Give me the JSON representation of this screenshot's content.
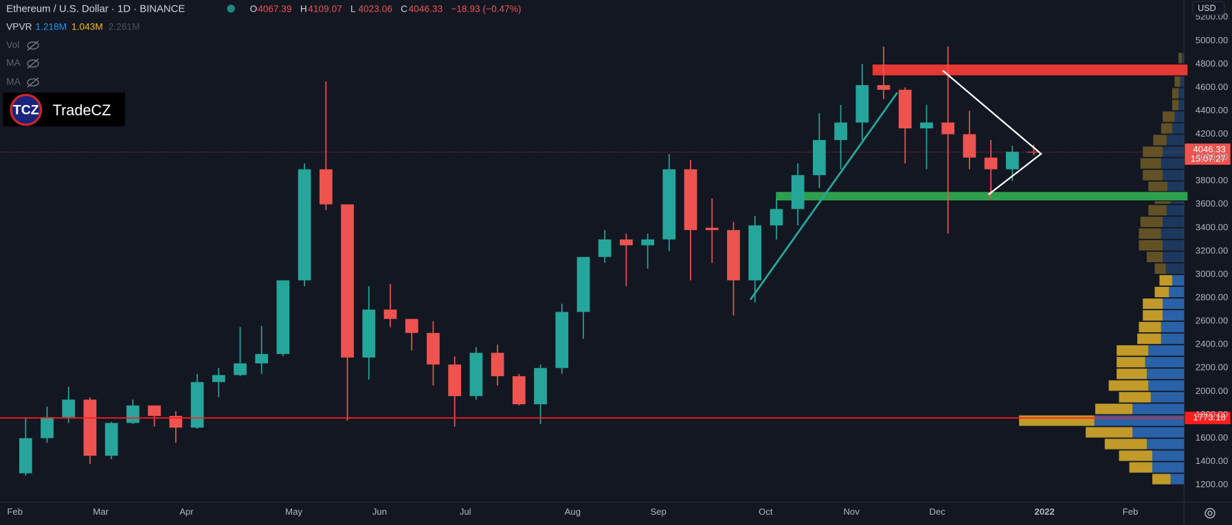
{
  "chart_data": {
    "type": "candlestick",
    "symbol": "Ethereum / U.S. Dollar · 1D · BINANCE",
    "ohlc": [
      {
        "label": "O",
        "value": 4067.39
      },
      {
        "label": "H",
        "value": 4109.07
      },
      {
        "label": "L",
        "value": 4023.06
      },
      {
        "label": "C",
        "value": 4046.33
      }
    ],
    "change": "−18.93 (−0.47%)",
    "indicators": {
      "name": "VPVR",
      "up": "1.218M",
      "down": "1.043M",
      "total": "2.261M",
      "hidden": [
        "Vol",
        "MA",
        "MA"
      ]
    },
    "logo": {
      "mark": "TCZ",
      "name": "TradeCZ"
    },
    "currency": "USD",
    "categories": [
      "Feb",
      null,
      null,
      null,
      "Mar",
      null,
      null,
      null,
      "Apr",
      null,
      null,
      null,
      null,
      "May",
      null,
      null,
      null,
      "Jun",
      null,
      null,
      null,
      "Jul",
      null,
      null,
      null,
      null,
      "Aug",
      null,
      null,
      null,
      "Sep",
      null,
      null,
      null,
      null,
      "Oct",
      null,
      null,
      null,
      "Nov",
      null,
      null,
      null,
      "Dec",
      null,
      null,
      null,
      null,
      "2022",
      null,
      null,
      null,
      "Feb"
    ],
    "open": [
      1300,
      1600,
      1780,
      1930,
      1450,
      1730,
      1880,
      1790,
      1690,
      2080,
      2140,
      2240,
      2320,
      2950,
      3900,
      3600,
      2290,
      2700,
      2620,
      2500,
      2230,
      1960,
      2330,
      2130,
      1890,
      2200,
      2680,
      3150,
      3300,
      3250,
      3300,
      3900,
      3400,
      3380,
      2950,
      3420,
      3560,
      3850,
      4150,
      4300,
      4620,
      4580,
      4250,
      4300,
      4200,
      4000,
      3900,
      4050,
      null,
      null,
      null,
      null,
      null
    ],
    "high": [
      1780,
      1870,
      2040,
      1950,
      1740,
      1930,
      1880,
      1830,
      2150,
      2200,
      2550,
      2560,
      2950,
      3950,
      4650,
      3600,
      2900,
      2920,
      2620,
      2600,
      2300,
      2380,
      2400,
      2150,
      2230,
      2750,
      3150,
      3380,
      3350,
      3350,
      4030,
      3980,
      3650,
      3450,
      3500,
      3650,
      3950,
      4380,
      4450,
      4800,
      4950,
      4600,
      4450,
      4950,
      4400,
      4150,
      4100,
      4110,
      null,
      null,
      null,
      null,
      null
    ],
    "low": [
      1280,
      1560,
      1730,
      1380,
      1420,
      1720,
      1700,
      1560,
      1680,
      1950,
      2130,
      2150,
      2300,
      2900,
      3550,
      1750,
      2100,
      2550,
      2350,
      2050,
      1700,
      1930,
      2050,
      1880,
      1720,
      2150,
      2450,
      3100,
      2900,
      3050,
      3200,
      2950,
      3100,
      2650,
      2760,
      3300,
      3420,
      3740,
      3900,
      4150,
      4500,
      3950,
      3900,
      3350,
      3900,
      3650,
      3800,
      4020,
      null,
      null,
      null,
      null,
      null
    ],
    "close": [
      1600,
      1780,
      1930,
      1450,
      1730,
      1880,
      1790,
      1690,
      2080,
      2140,
      2240,
      2320,
      2950,
      3900,
      3600,
      2290,
      2700,
      2620,
      2500,
      2230,
      1960,
      2330,
      2130,
      1890,
      2200,
      2680,
      3150,
      3300,
      3250,
      3300,
      3900,
      3380,
      3380,
      2950,
      3420,
      3560,
      3850,
      4150,
      4300,
      4620,
      4580,
      4250,
      4300,
      4200,
      4000,
      3900,
      4050,
      4046.33,
      null,
      null,
      null,
      null,
      null
    ],
    "up_color": "#26a69a",
    "down_color": "#ef5350",
    "ylim": [
      1052,
      5348
    ],
    "yticks": [
      {
        "value": 1200,
        "label": "1200.00"
      },
      {
        "value": 1400,
        "label": "1400.00"
      },
      {
        "value": 1600,
        "label": "1600.00"
      },
      {
        "value": 1800,
        "label": "1800.00"
      },
      {
        "value": 2000,
        "label": "2000.00"
      },
      {
        "value": 2200,
        "label": "2200.00"
      },
      {
        "value": 2400,
        "label": "2400.00"
      },
      {
        "value": 2600,
        "label": "2600.00"
      },
      {
        "value": 2800,
        "label": "2800.00"
      },
      {
        "value": 3000,
        "label": "3000.00"
      },
      {
        "value": 3200,
        "label": "3200.00"
      },
      {
        "value": 3400,
        "label": "3400.00"
      },
      {
        "value": 3600,
        "label": "3600.00"
      },
      {
        "value": 3800,
        "label": "3800.00"
      },
      {
        "value": 4000,
        "label": "4000.00"
      },
      {
        "value": 4200,
        "label": "4200.00"
      },
      {
        "value": 4400,
        "label": "4400.00"
      },
      {
        "value": 4600,
        "label": "4600.00"
      },
      {
        "value": 4800,
        "label": "4800.00"
      },
      {
        "value": 5000,
        "label": "5000.00"
      },
      {
        "value": 5200,
        "label": "5200.00"
      }
    ],
    "grid": false,
    "last_price": 4046.33,
    "countdown": "15:07:27",
    "horizontal_line": 1773.18,
    "zones": [
      {
        "from": 4700,
        "to": 4800,
        "color": "#e53935"
      },
      {
        "from": 3630,
        "to": 3710,
        "color": "#2e9e4f"
      }
    ],
    "volume_profile": {
      "bins": [
        1200,
        1300,
        1400,
        1500,
        1600,
        1700,
        1800,
        1900,
        2000,
        2100,
        2200,
        2300,
        2400,
        2500,
        2600,
        2700,
        2800,
        2900,
        3000,
        3100,
        3200,
        3300,
        3400,
        3500,
        3600,
        3700,
        3800,
        3900,
        4000,
        4100,
        4200,
        4300,
        4400,
        4500,
        4600,
        4700,
        4800,
        4900
      ],
      "up": [
        17,
        40,
        40,
        47,
        65,
        113,
        65,
        42,
        45,
        47,
        49,
        45,
        29,
        29,
        27,
        27,
        19,
        15,
        23,
        27,
        27,
        29,
        27,
        22,
        17,
        21,
        27,
        29,
        27,
        22,
        15,
        12,
        7,
        7,
        5,
        5,
        3
      ],
      "down": [
        23,
        29,
        42,
        53,
        59,
        95,
        47,
        40,
        50,
        38,
        36,
        40,
        30,
        28,
        25,
        25,
        18,
        16,
        14,
        20,
        30,
        28,
        28,
        23,
        20,
        24,
        25,
        26,
        25,
        17,
        14,
        15,
        8,
        8,
        7,
        6,
        4
      ],
      "up_color": "#2962a8",
      "down_color": "#c19a2a",
      "value_area": [
        1200,
        3000
      ]
    }
  }
}
